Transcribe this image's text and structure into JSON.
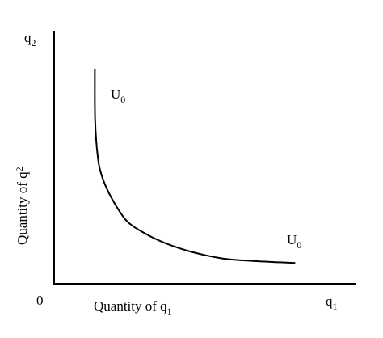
{
  "figure": {
    "origin_label": "0",
    "x_axis_end": {
      "base": "q",
      "sub": "1"
    },
    "y_axis_end": {
      "base": "q",
      "sub": "2"
    },
    "x_axis_title": {
      "base": "Quantity of q",
      "sub": "1"
    },
    "y_axis_title": {
      "base": "Quantity of q",
      "sub": "2"
    },
    "curve_label_top": {
      "base": "U",
      "sub": "0"
    },
    "curve_label_end": {
      "base": "U",
      "sub": "0"
    }
  },
  "colors": {
    "ink": "#000000",
    "background": "#ffffff"
  },
  "curve": {
    "name": "indifference curve",
    "x_range": [
      0,
      1
    ],
    "y_range": [
      0,
      1
    ],
    "points": [
      [
        0.135,
        0.85
      ],
      [
        0.136,
        0.65
      ],
      [
        0.145,
        0.5
      ],
      [
        0.16,
        0.42
      ],
      [
        0.19,
        0.34
      ],
      [
        0.24,
        0.25
      ],
      [
        0.3,
        0.2
      ],
      [
        0.37,
        0.16
      ],
      [
        0.46,
        0.125
      ],
      [
        0.56,
        0.1
      ],
      [
        0.66,
        0.09
      ],
      [
        0.75,
        0.085
      ],
      [
        0.8,
        0.082
      ]
    ]
  }
}
